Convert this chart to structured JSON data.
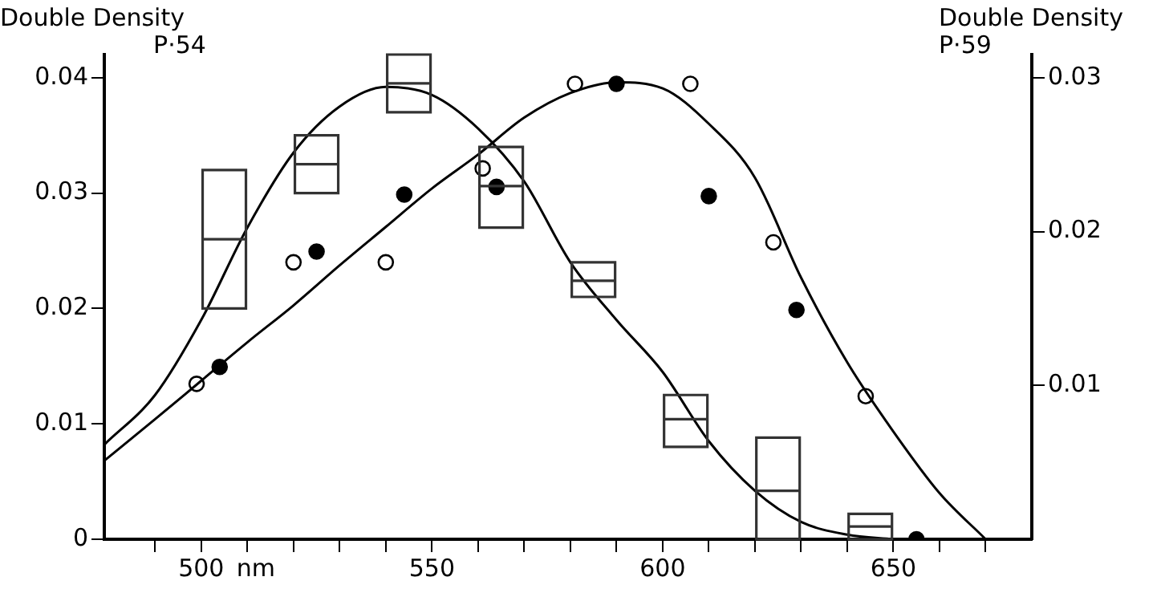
{
  "chart_data": {
    "type": "line",
    "ylabel": "Double Density\nP·54",
    "y2label": "Double Density\nP·59",
    "xlabel": "nm",
    "xlim": [
      479,
      680
    ],
    "xticks": [
      {
        "value": 490,
        "label": null
      },
      500,
      {
        "value": 510,
        "label": null
      },
      {
        "value": 520,
        "label": null
      },
      {
        "value": 530,
        "label": null
      },
      {
        "value": 540,
        "label": null
      },
      550,
      {
        "value": 560,
        "label": null
      },
      {
        "value": 570,
        "label": null
      },
      {
        "value": 580,
        "label": null
      },
      {
        "value": 590,
        "label": null
      },
      600,
      {
        "value": 610,
        "label": null
      },
      {
        "value": 620,
        "label": null
      },
      {
        "value": 630,
        "label": null
      },
      {
        "value": 640,
        "label": null
      },
      650,
      {
        "value": 660,
        "label": null
      },
      {
        "value": 670,
        "label": null
      }
    ],
    "ylim": [
      0,
      0.042
    ],
    "yticks": [
      0,
      0.01,
      0.02,
      0.03,
      0.04
    ],
    "y2lim": [
      0,
      0.0315
    ],
    "y2ticks": [
      0.01,
      0.02,
      0.03
    ],
    "grid": false,
    "legend": false,
    "series": [
      {
        "color": "#000000",
        "marker": "none",
        "axis": "y",
        "x": [
          479,
          490,
          500,
          510,
          520,
          530,
          540,
          550,
          560,
          570,
          580,
          590,
          600,
          610,
          620,
          630,
          640,
          650
        ],
        "values": [
          0.0082,
          0.0125,
          0.019,
          0.027,
          0.0335,
          0.0375,
          0.0392,
          0.0385,
          0.0356,
          0.031,
          0.024,
          0.019,
          0.0145,
          0.0085,
          0.0042,
          0.0015,
          0.0004,
          0
        ]
      },
      {
        "color": "#000000",
        "marker": "none",
        "axis": "y2",
        "x": [
          479,
          490,
          500,
          510,
          520,
          530,
          540,
          550,
          560,
          570,
          580,
          590,
          600,
          610,
          620,
          630,
          640,
          650,
          660,
          670
        ],
        "values": [
          0.0051,
          0.0078,
          0.0103,
          0.0128,
          0.0152,
          0.0178,
          0.0203,
          0.0228,
          0.025,
          0.0274,
          0.029,
          0.0297,
          0.0293,
          0.027,
          0.0235,
          0.017,
          0.0115,
          0.007,
          0.003,
          0
        ]
      },
      {
        "type": "box",
        "color": "#333333",
        "axis": "y",
        "x": [
          505,
          525,
          545,
          565,
          585,
          605,
          625,
          645
        ],
        "boxes": [
          {
            "low": 0.02,
            "q1": 0.02,
            "median": 0.026,
            "q3": 0.032,
            "high": 0.032
          },
          {
            "low": 0.03,
            "q1": 0.03,
            "median": 0.0325,
            "q3": 0.035,
            "high": 0.035
          },
          {
            "low": 0.037,
            "q1": 0.037,
            "median": 0.0395,
            "q3": 0.042,
            "high": 0.042
          },
          {
            "low": 0.027,
            "q1": 0.027,
            "median": 0.0306,
            "q3": 0.034,
            "high": 0.034
          },
          {
            "low": 0.021,
            "q1": 0.021,
            "median": 0.0224,
            "q3": 0.024,
            "high": 0.024
          },
          {
            "low": 0.008,
            "q1": 0.008,
            "median": 0.0104,
            "q3": 0.0125,
            "high": 0.0125
          },
          {
            "low": 0,
            "q1": 0,
            "median": 0.0042,
            "q3": 0.0088,
            "high": 0.0088
          },
          {
            "low": 0,
            "q1": 0,
            "median": 0.0011,
            "q3": 0.0022,
            "high": 0.0022
          }
        ]
      },
      {
        "type": "scatter",
        "color": "#ffffff",
        "marker": "circle",
        "axis": "y2",
        "x": [
          499,
          520,
          540,
          561,
          581,
          606,
          624,
          644
        ],
        "values": [
          0.0101,
          0.018,
          0.018,
          0.0241,
          0.0296,
          0.0296,
          0.0193,
          0.0093
        ]
      },
      {
        "type": "scatter",
        "color": "#000000",
        "marker": "circle",
        "axis": "y2",
        "x": [
          504,
          525,
          544,
          564,
          590,
          610,
          629,
          655
        ],
        "values": [
          0.0112,
          0.0187,
          0.0224,
          0.0229,
          0.0296,
          0.0223,
          0.0149,
          0
        ]
      }
    ]
  }
}
